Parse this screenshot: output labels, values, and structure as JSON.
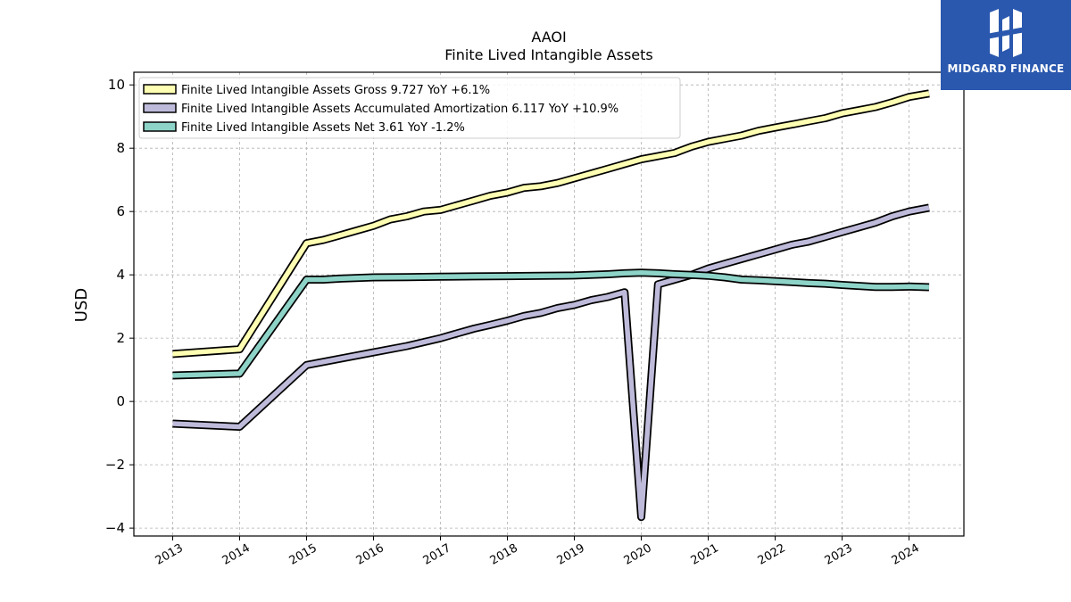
{
  "brand": {
    "name": "MIDGARD FINANCE",
    "icon": "midgard-logo-icon",
    "color": "#2a58ae"
  },
  "chart_data": {
    "type": "line",
    "title": "AAOI",
    "subtitle": "Finite Lived Intangible Assets",
    "xlabel": "",
    "ylabel": "USD",
    "xlim": [
      2012.42,
      2024.82
    ],
    "ylim": [
      -4.25,
      10.4
    ],
    "x_ticks": [
      "2013",
      "2014",
      "2015",
      "2016",
      "2017",
      "2018",
      "2019",
      "2020",
      "2021",
      "2022",
      "2023",
      "2024"
    ],
    "y_ticks": [
      -4,
      -2,
      0,
      2,
      4,
      6,
      8,
      10
    ],
    "y_tick_labels": [
      "−4",
      "−2",
      "0",
      "2",
      "4",
      "6",
      "8",
      "10"
    ],
    "grid": true,
    "legend_position": "top-left",
    "series": [
      {
        "name": "Finite Lived Intangible Assets Gross",
        "legend": "Finite Lived Intangible Assets Gross  9.727 YoY +6.1%",
        "color": "#ffffb3",
        "points": [
          [
            2013.0,
            1.5
          ],
          [
            2014.0,
            1.65
          ],
          [
            2015.0,
            5.0
          ],
          [
            2015.25,
            5.1
          ],
          [
            2015.5,
            5.25
          ],
          [
            2015.75,
            5.4
          ],
          [
            2016.0,
            5.55
          ],
          [
            2016.25,
            5.75
          ],
          [
            2016.5,
            5.85
          ],
          [
            2016.75,
            6.0
          ],
          [
            2017.0,
            6.05
          ],
          [
            2017.25,
            6.2
          ],
          [
            2017.5,
            6.35
          ],
          [
            2017.75,
            6.5
          ],
          [
            2018.0,
            6.6
          ],
          [
            2018.25,
            6.75
          ],
          [
            2018.5,
            6.8
          ],
          [
            2018.75,
            6.9
          ],
          [
            2019.0,
            7.05
          ],
          [
            2019.25,
            7.2
          ],
          [
            2019.5,
            7.35
          ],
          [
            2019.75,
            7.5
          ],
          [
            2020.0,
            7.65
          ],
          [
            2020.25,
            7.75
          ],
          [
            2020.5,
            7.85
          ],
          [
            2020.75,
            8.05
          ],
          [
            2021.0,
            8.2
          ],
          [
            2021.25,
            8.3
          ],
          [
            2021.5,
            8.4
          ],
          [
            2021.75,
            8.55
          ],
          [
            2022.0,
            8.65
          ],
          [
            2022.25,
            8.75
          ],
          [
            2022.5,
            8.85
          ],
          [
            2022.75,
            8.95
          ],
          [
            2023.0,
            9.1
          ],
          [
            2023.25,
            9.2
          ],
          [
            2023.5,
            9.3
          ],
          [
            2023.75,
            9.45
          ],
          [
            2024.0,
            9.62
          ],
          [
            2024.3,
            9.73
          ]
        ]
      },
      {
        "name": "Finite Lived Intangible Assets Accumulated Amortization",
        "legend": "Finite Lived Intangible Assets Accumulated Amortization  6.117 YoY +10.9%",
        "color": "#bebada",
        "points": [
          [
            2013.0,
            -0.7
          ],
          [
            2014.0,
            -0.8
          ],
          [
            2015.0,
            1.15
          ],
          [
            2015.5,
            1.35
          ],
          [
            2016.0,
            1.55
          ],
          [
            2016.5,
            1.75
          ],
          [
            2017.0,
            2.0
          ],
          [
            2017.25,
            2.15
          ],
          [
            2017.5,
            2.3
          ],
          [
            2017.75,
            2.42
          ],
          [
            2018.0,
            2.55
          ],
          [
            2018.25,
            2.7
          ],
          [
            2018.5,
            2.8
          ],
          [
            2018.75,
            2.95
          ],
          [
            2019.0,
            3.05
          ],
          [
            2019.25,
            3.2
          ],
          [
            2019.5,
            3.3
          ],
          [
            2019.75,
            3.45
          ],
          [
            2020.0,
            -3.65
          ],
          [
            2020.25,
            3.7
          ],
          [
            2020.5,
            3.85
          ],
          [
            2020.75,
            4.0
          ],
          [
            2021.0,
            4.2
          ],
          [
            2021.25,
            4.35
          ],
          [
            2021.5,
            4.5
          ],
          [
            2021.75,
            4.65
          ],
          [
            2022.0,
            4.8
          ],
          [
            2022.25,
            4.95
          ],
          [
            2022.5,
            5.05
          ],
          [
            2022.75,
            5.2
          ],
          [
            2023.0,
            5.35
          ],
          [
            2023.25,
            5.5
          ],
          [
            2023.5,
            5.65
          ],
          [
            2023.75,
            5.85
          ],
          [
            2024.0,
            6.0
          ],
          [
            2024.3,
            6.12
          ]
        ]
      },
      {
        "name": "Finite Lived Intangible Assets Net",
        "legend": "Finite Lived Intangible Assets Net  3.61 YoY -1.2%",
        "color": "#8dd3c7",
        "points": [
          [
            2013.0,
            0.82
          ],
          [
            2014.0,
            0.88
          ],
          [
            2015.0,
            3.85
          ],
          [
            2015.25,
            3.85
          ],
          [
            2015.5,
            3.88
          ],
          [
            2016.0,
            3.92
          ],
          [
            2016.5,
            3.93
          ],
          [
            2017.0,
            3.94
          ],
          [
            2017.5,
            3.95
          ],
          [
            2018.0,
            3.96
          ],
          [
            2018.5,
            3.97
          ],
          [
            2019.0,
            3.98
          ],
          [
            2019.5,
            4.02
          ],
          [
            2019.75,
            4.05
          ],
          [
            2020.0,
            4.07
          ],
          [
            2020.25,
            4.05
          ],
          [
            2020.5,
            4.02
          ],
          [
            2020.75,
            4.0
          ],
          [
            2021.0,
            3.97
          ],
          [
            2021.25,
            3.92
          ],
          [
            2021.5,
            3.85
          ],
          [
            2021.75,
            3.83
          ],
          [
            2022.0,
            3.8
          ],
          [
            2022.25,
            3.77
          ],
          [
            2022.5,
            3.74
          ],
          [
            2022.75,
            3.72
          ],
          [
            2023.0,
            3.68
          ],
          [
            2023.25,
            3.65
          ],
          [
            2023.5,
            3.62
          ],
          [
            2023.75,
            3.62
          ],
          [
            2024.0,
            3.63
          ],
          [
            2024.3,
            3.61
          ]
        ]
      }
    ]
  }
}
